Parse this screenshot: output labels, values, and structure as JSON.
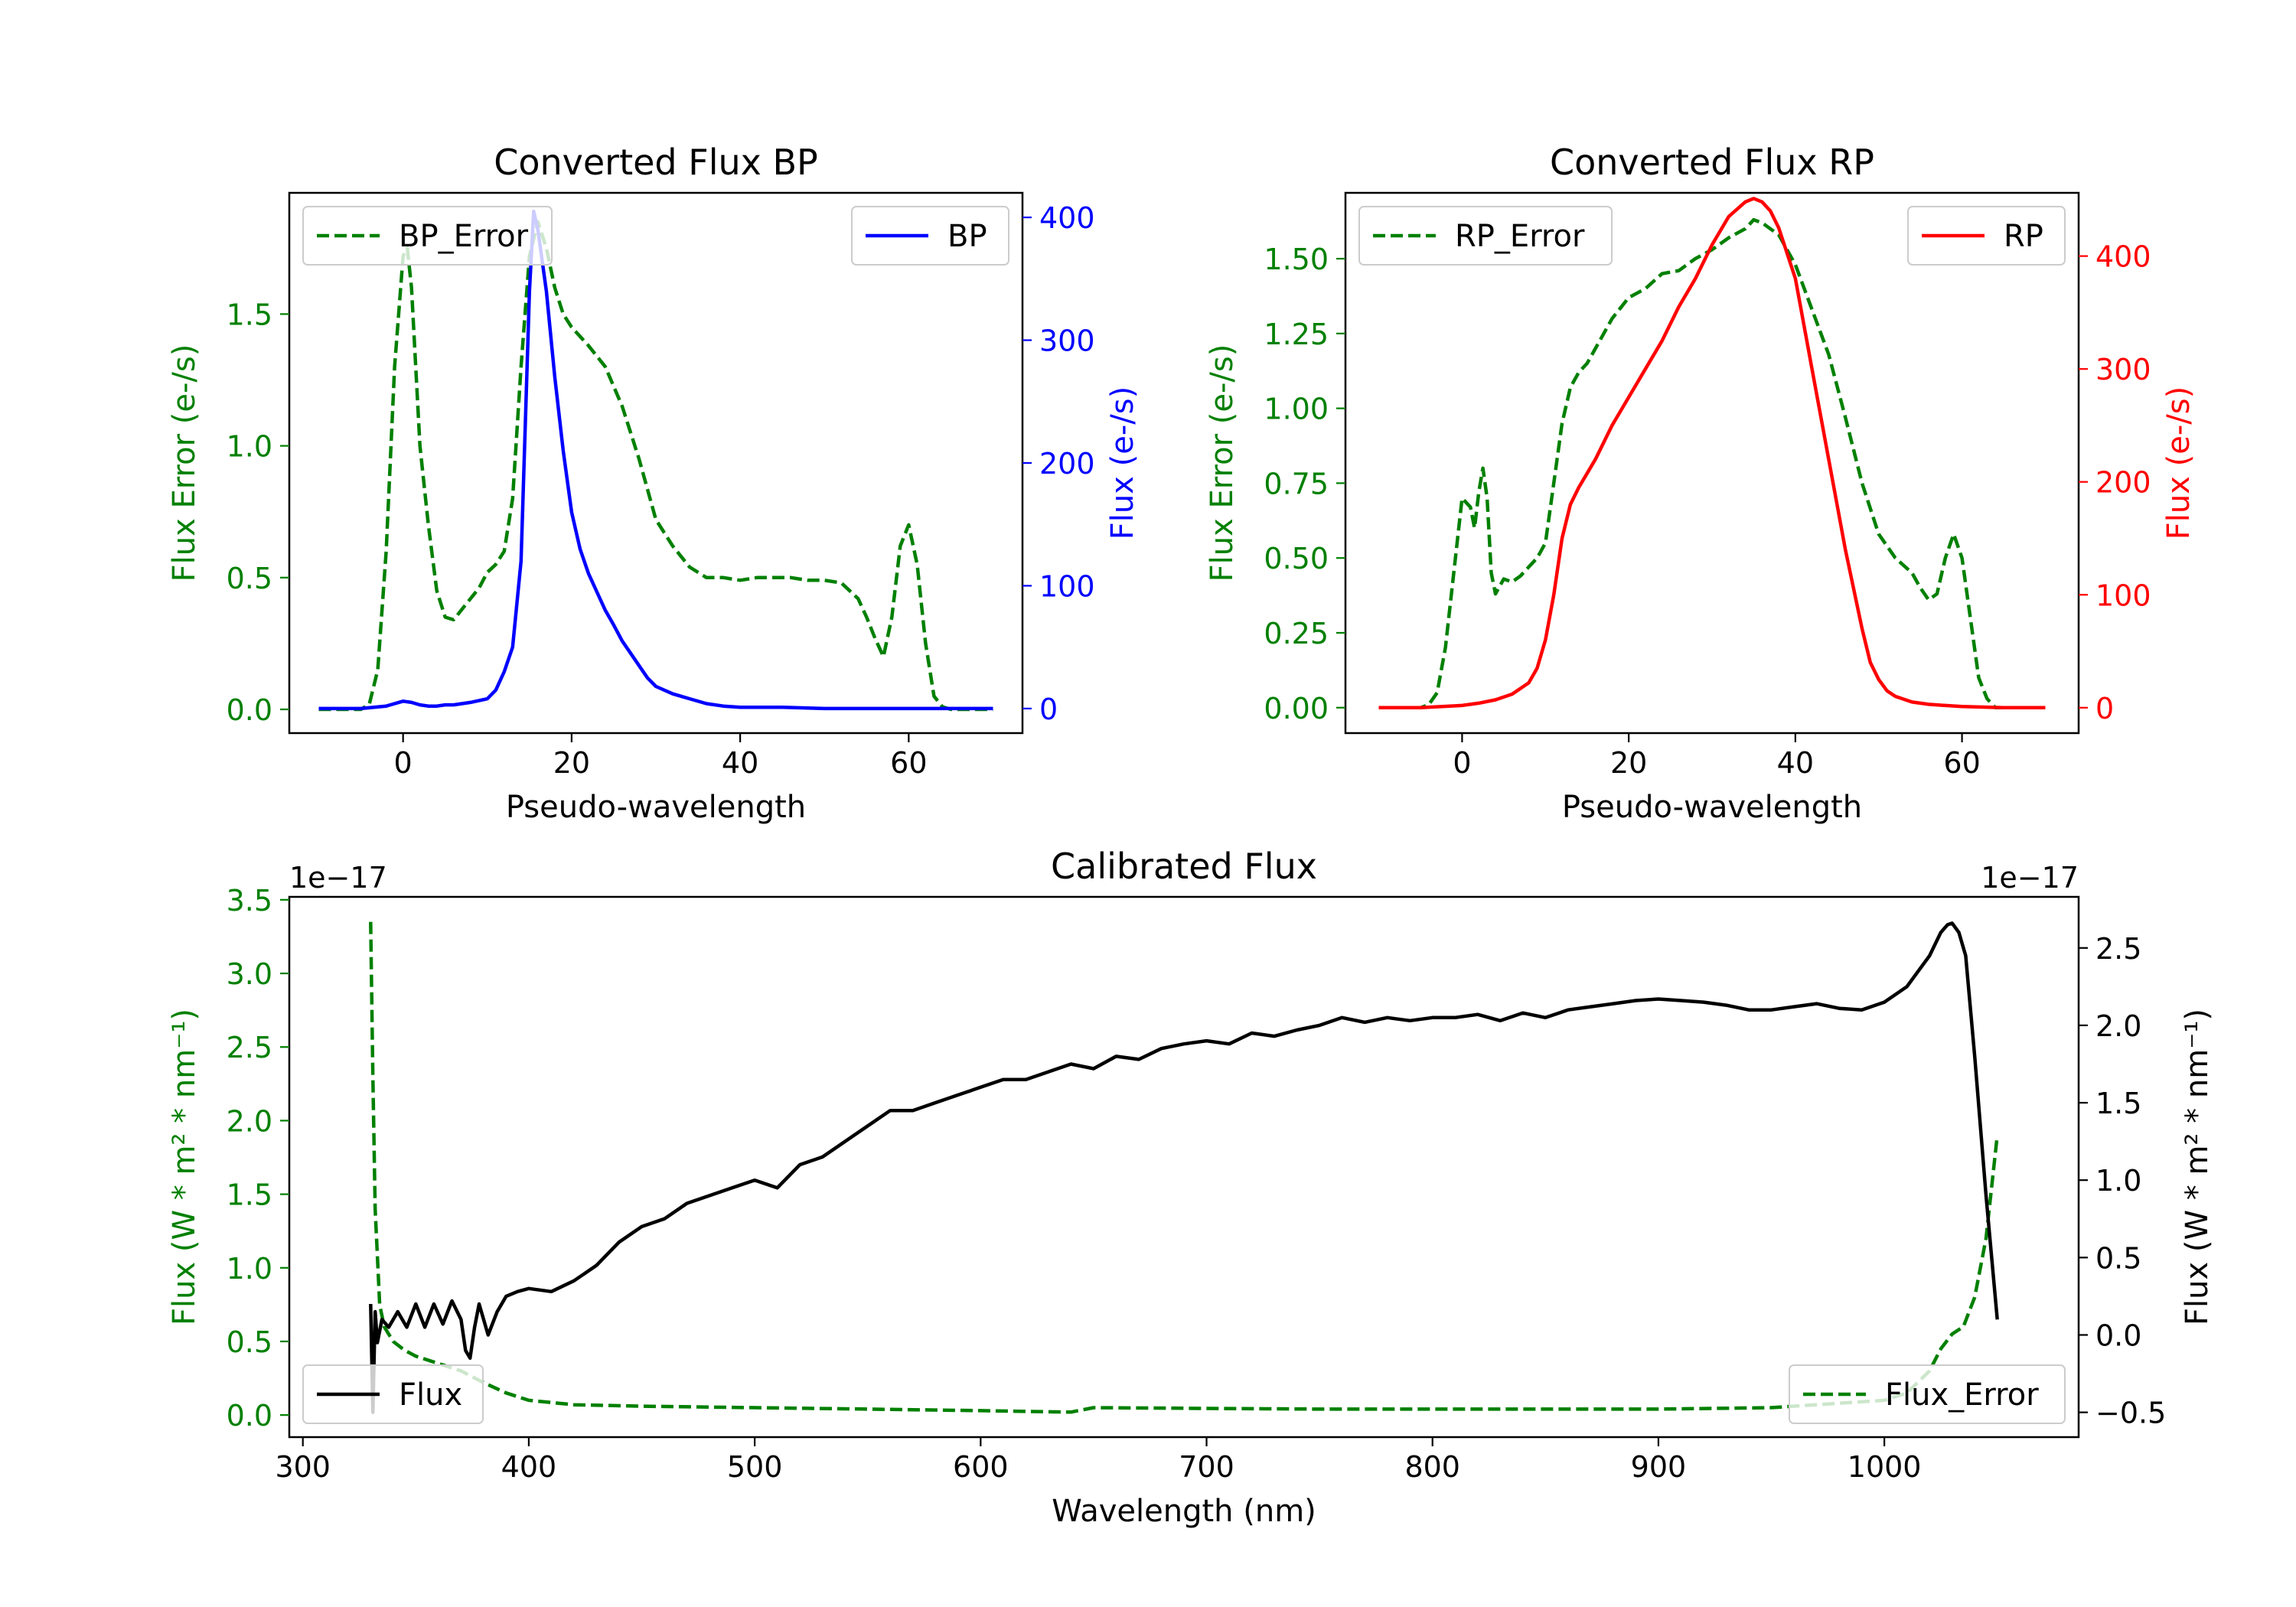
{
  "chart_data": [
    {
      "id": "bp",
      "type": "line",
      "title": "Converted Flux BP",
      "xlabel": "Pseudo-wavelength",
      "ylabel_left": "Flux Error (e-/s)",
      "ylabel_right": "Flux (e-/s)",
      "xlim": [
        -13.5,
        73.5
      ],
      "ylim_left": [
        -0.09,
        1.96
      ],
      "ylim_right": [
        -20,
        420
      ],
      "xticks": [
        0,
        20,
        40,
        60
      ],
      "yticks_left": [
        0.0,
        0.5,
        1.0,
        1.5
      ],
      "yticks_left_labels": [
        "0.0",
        "0.5",
        "1.0",
        "1.5"
      ],
      "yticks_right": [
        0,
        100,
        200,
        300,
        400
      ],
      "yticks_right_labels": [
        "0",
        "100",
        "200",
        "300",
        "400"
      ],
      "colors": {
        "left_axis": "#008000",
        "right_axis": "#0000ff",
        "error": "#008000",
        "flux": "#0000ff"
      },
      "legend_left": "BP_Error",
      "legend_right": "BP",
      "error_series": {
        "name": "BP_Error",
        "x": [
          -10,
          -5,
          -4,
          -3,
          -2,
          -1,
          0,
          0.5,
          1,
          2,
          3,
          4,
          5,
          6,
          7,
          8,
          9,
          10,
          11,
          12,
          13,
          14,
          15,
          16,
          17,
          18,
          19,
          20,
          22,
          24,
          26,
          28,
          30,
          32,
          34,
          36,
          38,
          40,
          42,
          44,
          46,
          48,
          50,
          52,
          54,
          55,
          56,
          57,
          58,
          59,
          60,
          61,
          62,
          63,
          64,
          65,
          66,
          68,
          70
        ],
        "y": [
          0,
          0,
          0.02,
          0.15,
          0.6,
          1.3,
          1.72,
          1.75,
          1.6,
          1.0,
          0.7,
          0.45,
          0.35,
          0.34,
          0.38,
          0.42,
          0.46,
          0.52,
          0.55,
          0.6,
          0.8,
          1.3,
          1.72,
          1.85,
          1.75,
          1.6,
          1.5,
          1.45,
          1.38,
          1.3,
          1.15,
          0.95,
          0.72,
          0.62,
          0.54,
          0.5,
          0.5,
          0.49,
          0.5,
          0.5,
          0.5,
          0.49,
          0.49,
          0.48,
          0.42,
          0.35,
          0.27,
          0.2,
          0.35,
          0.62,
          0.7,
          0.55,
          0.25,
          0.05,
          0.01,
          0,
          0,
          0,
          0
        ]
      },
      "flux_series": {
        "name": "BP",
        "x": [
          -10,
          -5,
          -2,
          0,
          1,
          2,
          3,
          4,
          5,
          6,
          8,
          10,
          11,
          12,
          13,
          14,
          15,
          15.5,
          16,
          17,
          18,
          19,
          20,
          21,
          22,
          23,
          24,
          25,
          26,
          27,
          28,
          29,
          30,
          32,
          34,
          36,
          38,
          40,
          45,
          50,
          55,
          60,
          65,
          70
        ],
        "y": [
          0,
          0,
          2,
          6,
          5,
          3,
          2,
          2,
          3,
          3,
          5,
          8,
          15,
          30,
          50,
          120,
          340,
          405,
          390,
          340,
          270,
          210,
          160,
          130,
          110,
          95,
          80,
          68,
          55,
          45,
          35,
          25,
          18,
          12,
          8,
          4,
          2,
          1,
          1,
          0,
          0,
          0,
          0,
          0
        ]
      }
    },
    {
      "id": "rp",
      "type": "line",
      "title": "Converted Flux RP",
      "xlabel": "Pseudo-wavelength",
      "ylabel_left": "Flux Error (e-/s)",
      "ylabel_right": "Flux (e-/s)",
      "xlim": [
        -14,
        74
      ],
      "ylim_left": [
        -0.085,
        1.72
      ],
      "ylim_right": [
        -22.5,
        456
      ],
      "xticks": [
        0,
        20,
        40,
        60
      ],
      "yticks_left": [
        0.0,
        0.25,
        0.5,
        0.75,
        1.0,
        1.25,
        1.5
      ],
      "yticks_left_labels": [
        "0.00",
        "0.25",
        "0.50",
        "0.75",
        "1.00",
        "1.25",
        "1.50"
      ],
      "yticks_right": [
        0,
        100,
        200,
        300,
        400
      ],
      "yticks_right_labels": [
        "0",
        "100",
        "200",
        "300",
        "400"
      ],
      "colors": {
        "left_axis": "#008000",
        "right_axis": "#ff0000",
        "error": "#008000",
        "flux": "#ff0000"
      },
      "legend_left": "RP_Error",
      "legend_right": "RP",
      "error_series": {
        "name": "RP_Error",
        "x": [
          -10,
          -5,
          -4,
          -3,
          -2,
          -1,
          0,
          1,
          1.5,
          2,
          2.5,
          3,
          3.5,
          4,
          5,
          6,
          7,
          8,
          9,
          10,
          11,
          12,
          13,
          14,
          15,
          16,
          18,
          20,
          22,
          24,
          26,
          28,
          30,
          32,
          34,
          35,
          36,
          38,
          40,
          42,
          44,
          46,
          48,
          50,
          52,
          54,
          55,
          56,
          57,
          58,
          59,
          60,
          61,
          62,
          63,
          64,
          66,
          70
        ],
        "y": [
          0,
          0,
          0.01,
          0.05,
          0.2,
          0.45,
          0.7,
          0.67,
          0.6,
          0.72,
          0.8,
          0.7,
          0.45,
          0.38,
          0.43,
          0.42,
          0.44,
          0.47,
          0.5,
          0.55,
          0.75,
          0.95,
          1.07,
          1.12,
          1.15,
          1.2,
          1.3,
          1.37,
          1.4,
          1.45,
          1.46,
          1.5,
          1.53,
          1.57,
          1.6,
          1.63,
          1.62,
          1.58,
          1.48,
          1.33,
          1.18,
          0.97,
          0.75,
          0.58,
          0.5,
          0.45,
          0.4,
          0.36,
          0.38,
          0.5,
          0.58,
          0.5,
          0.3,
          0.1,
          0.03,
          0,
          0,
          0
        ]
      },
      "flux_series": {
        "name": "RP",
        "x": [
          -10,
          -5,
          0,
          2,
          4,
          6,
          8,
          9,
          10,
          11,
          12,
          13,
          14,
          16,
          18,
          20,
          22,
          24,
          26,
          28,
          30,
          32,
          34,
          35,
          36,
          37,
          38,
          40,
          42,
          44,
          46,
          48,
          49,
          50,
          51,
          52,
          54,
          56,
          58,
          60,
          65,
          70
        ],
        "y": [
          0,
          0,
          2,
          4,
          7,
          12,
          22,
          35,
          60,
          100,
          150,
          180,
          195,
          220,
          250,
          275,
          300,
          325,
          355,
          380,
          410,
          435,
          448,
          451,
          448,
          440,
          425,
          380,
          300,
          220,
          140,
          70,
          40,
          25,
          15,
          10,
          5,
          3,
          2,
          1,
          0,
          0
        ]
      }
    },
    {
      "id": "cal",
      "type": "line",
      "title": "Calibrated Flux",
      "xlabel": "Wavelength (nm)",
      "ylabel_left": "Flux (W * m² * nm⁻¹)",
      "ylabel_right": "Flux (W * m² * nm⁻¹)",
      "offset_left": "1e−17",
      "offset_right": "1e−17",
      "xlim": [
        294,
        1086
      ],
      "ylim_left": [
        -0.15,
        3.52
      ],
      "ylim_right": [
        -0.66,
        2.83
      ],
      "xticks": [
        300,
        400,
        500,
        600,
        700,
        800,
        900,
        1000
      ],
      "yticks_left": [
        0.0,
        0.5,
        1.0,
        1.5,
        2.0,
        2.5,
        3.0,
        3.5
      ],
      "yticks_left_labels": [
        "0.0",
        "0.5",
        "1.0",
        "1.5",
        "2.0",
        "2.5",
        "3.0",
        "3.5"
      ],
      "yticks_right": [
        -0.5,
        0.0,
        0.5,
        1.0,
        1.5,
        2.0,
        2.5
      ],
      "yticks_right_labels": [
        "−0.5",
        "0.0",
        "0.5",
        "1.0",
        "1.5",
        "2.0",
        "2.5"
      ],
      "colors": {
        "left_axis": "#008000",
        "right_axis": "#000000",
        "error": "#008000",
        "flux": "#000000"
      },
      "legend_left": "Flux",
      "legend_right": "Flux_Error",
      "error_series": {
        "name": "Flux_Error",
        "x": [
          330,
          331,
          332,
          334,
          336,
          340,
          345,
          350,
          360,
          370,
          380,
          390,
          400,
          420,
          450,
          500,
          550,
          600,
          640,
          650,
          700,
          750,
          800,
          850,
          900,
          950,
          1000,
          1010,
          1020,
          1025,
          1030,
          1035,
          1040,
          1045,
          1050
        ],
        "y": [
          3.35,
          2.3,
          1.4,
          0.75,
          0.6,
          0.5,
          0.44,
          0.4,
          0.35,
          0.3,
          0.22,
          0.15,
          0.1,
          0.07,
          0.06,
          0.05,
          0.04,
          0.03,
          0.02,
          0.05,
          0.045,
          0.04,
          0.04,
          0.04,
          0.04,
          0.05,
          0.1,
          0.15,
          0.3,
          0.45,
          0.55,
          0.6,
          0.8,
          1.2,
          1.9
        ]
      },
      "flux_series": {
        "name": "Flux",
        "x": [
          330,
          331,
          332,
          333,
          335,
          338,
          342,
          346,
          350,
          354,
          358,
          362,
          366,
          370,
          372,
          374,
          376,
          378,
          382,
          386,
          390,
          395,
          400,
          410,
          420,
          430,
          440,
          450,
          460,
          470,
          480,
          490,
          500,
          510,
          520,
          530,
          540,
          550,
          560,
          570,
          580,
          590,
          600,
          610,
          620,
          630,
          640,
          650,
          660,
          670,
          680,
          690,
          700,
          710,
          720,
          730,
          740,
          750,
          760,
          770,
          780,
          790,
          800,
          810,
          820,
          830,
          840,
          850,
          860,
          870,
          880,
          890,
          900,
          910,
          920,
          930,
          940,
          950,
          960,
          970,
          980,
          990,
          1000,
          1010,
          1020,
          1025,
          1028,
          1030,
          1033,
          1036,
          1040,
          1045,
          1050
        ],
        "y": [
          0.2,
          -0.5,
          0.15,
          -0.05,
          0.1,
          0.05,
          0.15,
          0.05,
          0.2,
          0.05,
          0.2,
          0.07,
          0.22,
          0.1,
          -0.1,
          -0.15,
          0.05,
          0.2,
          0.0,
          0.15,
          0.25,
          0.28,
          0.3,
          0.28,
          0.35,
          0.45,
          0.6,
          0.7,
          0.75,
          0.85,
          0.9,
          0.95,
          1.0,
          0.95,
          1.1,
          1.15,
          1.25,
          1.35,
          1.45,
          1.45,
          1.5,
          1.55,
          1.6,
          1.65,
          1.65,
          1.7,
          1.75,
          1.72,
          1.8,
          1.78,
          1.85,
          1.88,
          1.9,
          1.88,
          1.95,
          1.93,
          1.97,
          2.0,
          2.05,
          2.02,
          2.05,
          2.03,
          2.05,
          2.05,
          2.07,
          2.03,
          2.08,
          2.05,
          2.1,
          2.12,
          2.14,
          2.16,
          2.17,
          2.16,
          2.15,
          2.13,
          2.1,
          2.1,
          2.12,
          2.14,
          2.11,
          2.1,
          2.15,
          2.25,
          2.45,
          2.6,
          2.65,
          2.66,
          2.6,
          2.45,
          1.8,
          0.9,
          0.1
        ]
      }
    }
  ]
}
